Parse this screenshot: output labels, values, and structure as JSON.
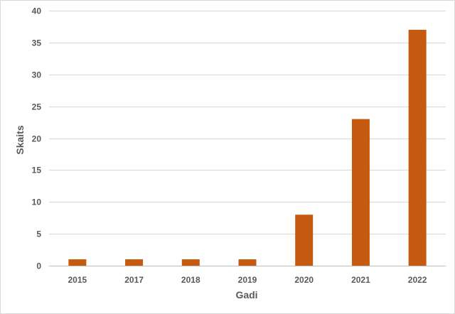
{
  "chart_data": {
    "type": "bar",
    "title": "",
    "xlabel": "Gadi",
    "ylabel": "Skaits",
    "categories": [
      "2015",
      "2017",
      "2018",
      "2019",
      "2020",
      "2021",
      "2022"
    ],
    "values": [
      1,
      1,
      1,
      1,
      8,
      23,
      37
    ],
    "ylim": [
      0,
      40
    ],
    "yticks": [
      0,
      5,
      10,
      15,
      20,
      25,
      30,
      35,
      40
    ],
    "grid": true,
    "legend": "none",
    "bar_color": "#C55A11"
  }
}
